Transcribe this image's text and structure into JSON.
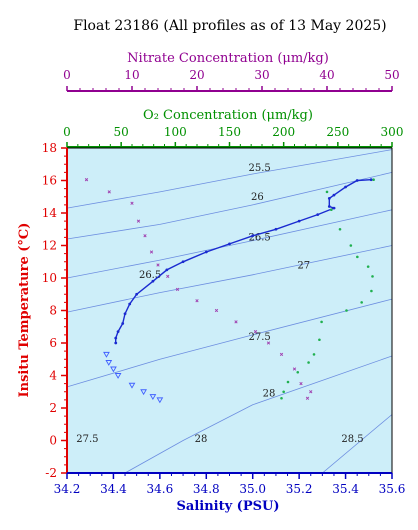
{
  "chart_data": {
    "type": "scatter",
    "title": "Float 23186  (All profiles as of 13 May 2025)",
    "colors": {
      "temperature_axis": "#e00000",
      "salinity_axis": "#0000c0",
      "oxygen_axis": "#009000",
      "nitrate_axis": "#900090",
      "plot_background": "#cdeef9",
      "density_contours": "#6d8ee0",
      "profile_line": "#1a2ad0",
      "oxygen_marks": "#20b050",
      "nitrate_marks": "#a040b0",
      "triangle_marks": "#4060ff"
    },
    "axes": {
      "salinity": {
        "label": "Salinity (PSU)",
        "range": [
          34.2,
          35.6
        ],
        "ticks": [
          "34.2",
          "34.4",
          "34.6",
          "34.8",
          "35.0",
          "35.2",
          "35.4",
          "35.6"
        ]
      },
      "temperature": {
        "label": "Insitu Temperature (°C)",
        "range": [
          -2,
          18
        ],
        "ticks": [
          "-2",
          "0",
          "2",
          "4",
          "6",
          "8",
          "10",
          "12",
          "14",
          "16",
          "18"
        ]
      },
      "oxygen": {
        "label": "O₂ Concentration (μm/kg)",
        "range": [
          0,
          300
        ],
        "ticks": [
          "0",
          "50",
          "100",
          "150",
          "200",
          "250",
          "300"
        ]
      },
      "nitrate": {
        "label": "Nitrate Concentration (μm/kg)",
        "range": [
          0,
          50
        ],
        "ticks": [
          "0",
          "10",
          "20",
          "30",
          "40",
          "50"
        ]
      }
    },
    "density_contours": [
      {
        "label": "25.5",
        "label_at": [
          35.03,
          16.6
        ],
        "points": [
          [
            34.2,
            14.3
          ],
          [
            34.6,
            15.3
          ],
          [
            35.0,
            16.4
          ],
          [
            35.6,
            17.9
          ]
        ]
      },
      {
        "label": "26",
        "label_at": [
          35.02,
          14.8
        ],
        "points": [
          [
            34.2,
            12.4
          ],
          [
            34.6,
            13.3
          ],
          [
            35.0,
            14.5
          ],
          [
            35.6,
            16.5
          ]
        ]
      },
      {
        "label": "26.5",
        "label_at": [
          35.03,
          12.3
        ],
        "points": [
          [
            34.2,
            10.0
          ],
          [
            34.6,
            11.1
          ],
          [
            35.0,
            12.3
          ],
          [
            35.6,
            14.2
          ]
        ]
      },
      {
        "label": "27",
        "label_at": [
          35.22,
          10.6
        ],
        "points": [
          [
            34.2,
            7.9
          ],
          [
            34.6,
            9.1
          ],
          [
            35.0,
            10.2
          ],
          [
            35.6,
            12.0
          ]
        ]
      },
      {
        "label": "27.5",
        "label_at": [
          35.03,
          6.2
        ],
        "points": [
          [
            34.2,
            3.3
          ],
          [
            34.6,
            5.0
          ],
          [
            35.0,
            6.5
          ],
          [
            35.6,
            8.7
          ]
        ]
      },
      {
        "label": "28",
        "label_at": [
          35.07,
          2.7
        ],
        "points": [
          [
            34.45,
            -2
          ],
          [
            34.7,
            0.0
          ],
          [
            35.0,
            2.2
          ],
          [
            35.6,
            5.2
          ]
        ]
      },
      {
        "label": "28.5",
        "label_at": [
          35.43,
          -0.1
        ],
        "points": [
          [
            35.3,
            -2
          ],
          [
            35.6,
            1.6
          ]
        ]
      }
    ],
    "extra_labels": [
      {
        "text": "26.5",
        "at": [
          34.51,
          10.0
        ]
      },
      {
        "text": "27.5",
        "at": [
          34.24,
          -0.1
        ]
      },
      {
        "text": "28",
        "at": [
          34.75,
          -0.1
        ]
      }
    ],
    "series": [
      {
        "name": "",
        "kind": "ts_profile",
        "axis": "salinity",
        "points": [
          [
            35.51,
            16.05
          ],
          [
            35.45,
            16.0
          ],
          [
            35.4,
            15.6
          ],
          [
            35.35,
            15.1
          ],
          [
            35.33,
            14.9
          ],
          [
            35.33,
            14.4
          ],
          [
            35.35,
            14.3
          ],
          [
            35.28,
            13.9
          ],
          [
            35.2,
            13.5
          ],
          [
            35.1,
            13.0
          ],
          [
            35.0,
            12.6
          ],
          [
            34.9,
            12.1
          ],
          [
            34.8,
            11.6
          ],
          [
            34.7,
            11.0
          ],
          [
            34.63,
            10.5
          ],
          [
            34.57,
            9.8
          ],
          [
            34.5,
            9.0
          ],
          [
            34.47,
            8.4
          ],
          [
            34.45,
            7.8
          ],
          [
            34.44,
            7.2
          ],
          [
            34.42,
            6.7
          ],
          [
            34.41,
            6.3
          ],
          [
            34.41,
            6.0
          ]
        ]
      },
      {
        "name": "",
        "kind": "oxygen",
        "axis": "oxygen",
        "points": [
          [
            283,
            16.05
          ],
          [
            240,
            15.3
          ],
          [
            244,
            14.2
          ],
          [
            252,
            13.0
          ],
          [
            262,
            12.0
          ],
          [
            268,
            11.3
          ],
          [
            278,
            10.7
          ],
          [
            282,
            10.1
          ],
          [
            281,
            9.2
          ],
          [
            272,
            8.5
          ],
          [
            258,
            8.0
          ],
          [
            235,
            7.3
          ],
          [
            233,
            6.2
          ],
          [
            228,
            5.3
          ],
          [
            223,
            4.8
          ],
          [
            213,
            4.2
          ],
          [
            204,
            3.6
          ],
          [
            200,
            3.0
          ],
          [
            198,
            2.6
          ]
        ]
      },
      {
        "name": "",
        "kind": "nitrate",
        "axis": "nitrate",
        "points": [
          [
            3,
            16.05
          ],
          [
            6.5,
            15.3
          ],
          [
            10,
            14.6
          ],
          [
            11,
            13.5
          ],
          [
            12,
            12.6
          ],
          [
            13,
            11.6
          ],
          [
            14,
            10.8
          ],
          [
            15.5,
            10.1
          ],
          [
            17,
            9.3
          ],
          [
            20,
            8.6
          ],
          [
            23,
            8.0
          ],
          [
            26,
            7.3
          ],
          [
            29,
            6.7
          ],
          [
            31,
            6.0
          ],
          [
            33,
            5.3
          ],
          [
            35,
            4.4
          ],
          [
            36,
            3.5
          ],
          [
            37.5,
            3.0
          ],
          [
            37,
            2.6
          ]
        ]
      },
      {
        "name": "",
        "kind": "triangles",
        "axis": "salinity",
        "points": [
          [
            34.37,
            5.3
          ],
          [
            34.38,
            4.8
          ],
          [
            34.4,
            4.4
          ],
          [
            34.42,
            4.0
          ],
          [
            34.48,
            3.4
          ],
          [
            34.53,
            3.0
          ],
          [
            34.57,
            2.7
          ],
          [
            34.6,
            2.5
          ]
        ]
      }
    ]
  }
}
